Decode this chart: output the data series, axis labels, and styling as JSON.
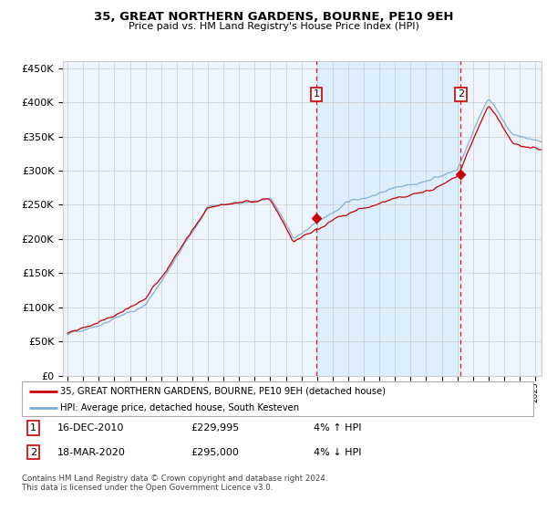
{
  "title": "35, GREAT NORTHERN GARDENS, BOURNE, PE10 9EH",
  "subtitle": "Price paid vs. HM Land Registry's House Price Index (HPI)",
  "legend_line1": "35, GREAT NORTHERN GARDENS, BOURNE, PE10 9EH (detached house)",
  "legend_line2": "HPI: Average price, detached house, South Kesteven",
  "annotation1_date": "16-DEC-2010",
  "annotation1_price": "£229,995",
  "annotation1_hpi": "4% ↑ HPI",
  "annotation2_date": "18-MAR-2020",
  "annotation2_price": "£295,000",
  "annotation2_hpi": "4% ↓ HPI",
  "footer": "Contains HM Land Registry data © Crown copyright and database right 2024.\nThis data is licensed under the Open Government Licence v3.0.",
  "red_line_color": "#cc0000",
  "blue_line_color": "#7aadd4",
  "shade_color": "#ddeeff",
  "grid_color": "#cccccc",
  "background_color": "#ffffff",
  "plot_bg_color": "#eef4fb",
  "marker1_x_year": 2010.96,
  "marker1_y": 229995,
  "marker2_x_year": 2020.21,
  "marker2_y": 295000,
  "vline1_x_year": 2010.96,
  "vline2_x_year": 2020.21,
  "shade_start": 2010.96,
  "shade_end": 2020.21,
  "ylim": [
    0,
    460000
  ],
  "xlim_start": 1994.7,
  "xlim_end": 2025.4
}
